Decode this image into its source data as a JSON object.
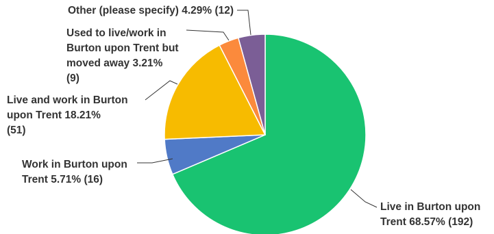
{
  "chart_data": {
    "type": "pie",
    "start_angle_deg": 0,
    "direction": "clockwise",
    "slices": [
      {
        "label": "Live in Burton upon Trent",
        "percent": 68.57,
        "count": 192,
        "color": "#19c371",
        "label_lines": [
          "Live in Burton upon",
          "Trent 68.57% (192)"
        ]
      },
      {
        "label": "Work in Burton upon Trent",
        "percent": 5.71,
        "count": 16,
        "color": "#507ac7",
        "label_lines": [
          "Work in Burton upon",
          "Trent 5.71% (16)"
        ]
      },
      {
        "label": "Live and work in Burton upon Trent",
        "percent": 18.21,
        "count": 51,
        "color": "#f7bb00",
        "label_lines": [
          "Live and work in Burton",
          "upon Trent 18.21%",
          "(51)"
        ]
      },
      {
        "label": "Used to live/work in Burton upon Trent but moved away",
        "percent": 3.21,
        "count": 9,
        "color": "#fb8a3c",
        "label_lines": [
          "Used to live/work in",
          "Burton upon Trent but",
          "moved away 3.21%",
          "(9)"
        ]
      },
      {
        "label": "Other (please specify)",
        "percent": 4.29,
        "count": 12,
        "color": "#7b5e96",
        "label_lines": [
          "Other (please specify) 4.29% (12)"
        ]
      }
    ]
  }
}
